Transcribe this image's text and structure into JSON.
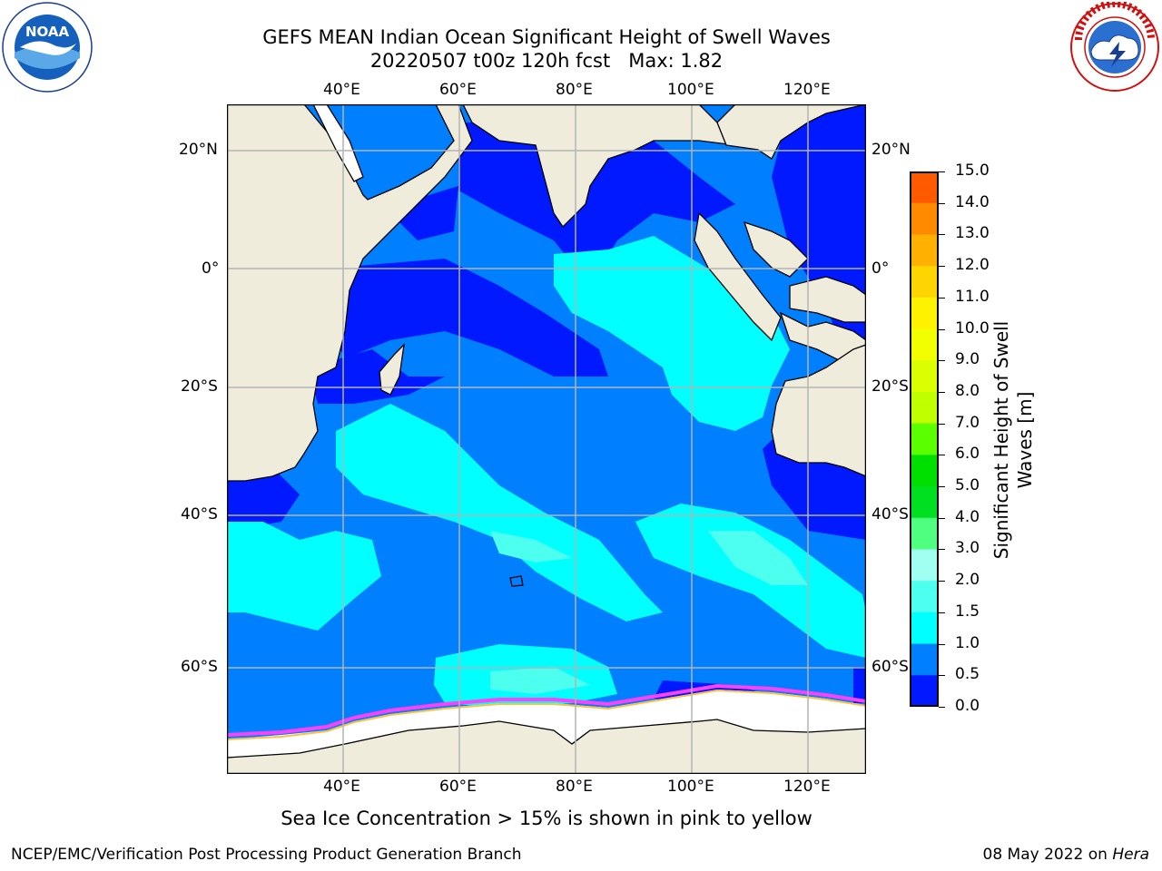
{
  "title": {
    "line1": "GEFS MEAN Indian Ocean Significant Height of Swell Waves",
    "line2": "20220507 t00z 120h fcst   Max: 1.82"
  },
  "logos": {
    "left": "NOAA",
    "left_ring": "NATIONAL OCEANIC AND ATMOSPHERIC ADMINISTRATION · U.S. DEPARTMENT OF COMMERCE",
    "right_ring": "NATIONAL WEATHER SERVICE"
  },
  "map": {
    "lon_labels": [
      "40°E",
      "60°E",
      "80°E",
      "100°E",
      "120°E"
    ],
    "lat_labels": [
      "20°N",
      "0°",
      "20°S",
      "40°S",
      "60°S"
    ],
    "colors": {
      "land": "#efecdc",
      "ice": "#ffffff",
      "swell_0_05": "#0019ff",
      "swell_05_10": "#0080ff",
      "swell_10_15": "#00ffff",
      "swell_15_20": "#4dffee",
      "ice_edge": "#ff40ff",
      "ice_core": "#ffc040",
      "grid": "#b4b4b4"
    }
  },
  "colorbar": {
    "title_line1": "Significant Height of Swell",
    "title_line2": "Waves [m]",
    "ticks": [
      "15.0",
      "14.0",
      "13.0",
      "12.0",
      "11.0",
      "10.0",
      "9.0",
      "8.0",
      "7.0",
      "6.0",
      "5.0",
      "4.0",
      "3.0",
      "2.0",
      "1.5",
      "1.0",
      "0.5",
      "0.0"
    ],
    "colors": [
      "#ff0000",
      "#ff2a00",
      "#ff5a00",
      "#ff8a00",
      "#ffb000",
      "#ffd500",
      "#fff200",
      "#f2ff00",
      "#dcff00",
      "#c0ff00",
      "#5aff00",
      "#00e000",
      "#00e020",
      "#4fff80",
      "#a0fff0",
      "#4dffee",
      "#00ffff",
      "#0080ff",
      "#0019ff"
    ]
  },
  "caption": "Sea Ice Concentration > 15% is shown in pink to yellow",
  "footer": {
    "left": "NCEP/EMC/Verification Post Processing Product Generation Branch",
    "right_date": "08 May 2022 on ",
    "right_host": "Hera"
  }
}
